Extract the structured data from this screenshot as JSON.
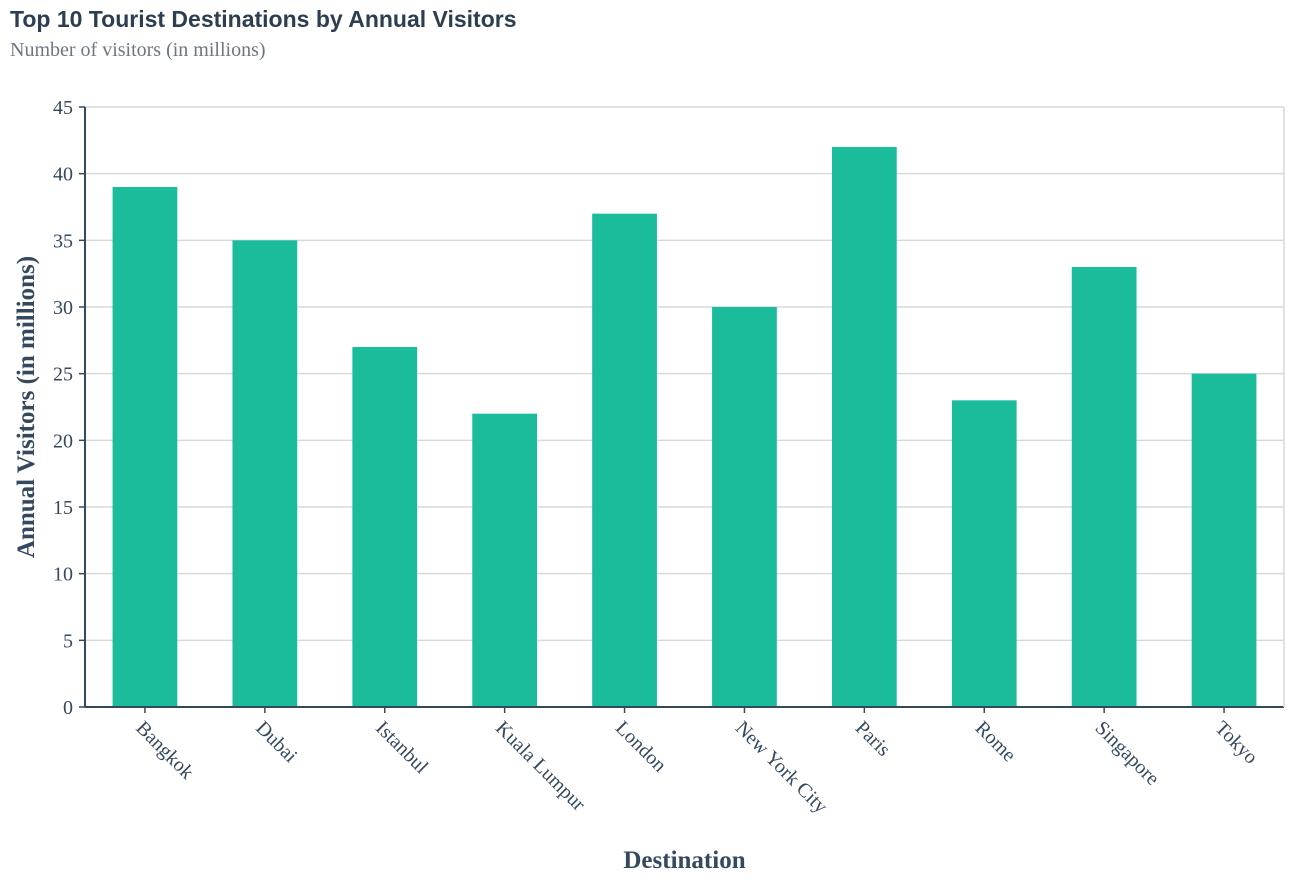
{
  "chart_data": {
    "type": "bar",
    "title": "Top 10 Tourist Destinations by Annual Visitors",
    "subtitle": "Number of visitors (in millions)",
    "xlabel": "Destination",
    "ylabel": "Annual Visitors (in millions)",
    "categories": [
      "Bangkok",
      "Dubai",
      "Istanbul",
      "Kuala Lumpur",
      "London",
      "New York City",
      "Paris",
      "Rome",
      "Singapore",
      "Tokyo"
    ],
    "values": [
      39,
      35,
      27,
      22,
      37,
      30,
      42,
      23,
      33,
      25
    ],
    "ylim": [
      0,
      45
    ],
    "yticks": [
      0,
      5,
      10,
      15,
      20,
      25,
      30,
      35,
      40,
      45
    ],
    "grid": true,
    "bar_color": "#1abc9c",
    "axis_color": "#34495e",
    "grid_color": "#d9d9d9"
  }
}
